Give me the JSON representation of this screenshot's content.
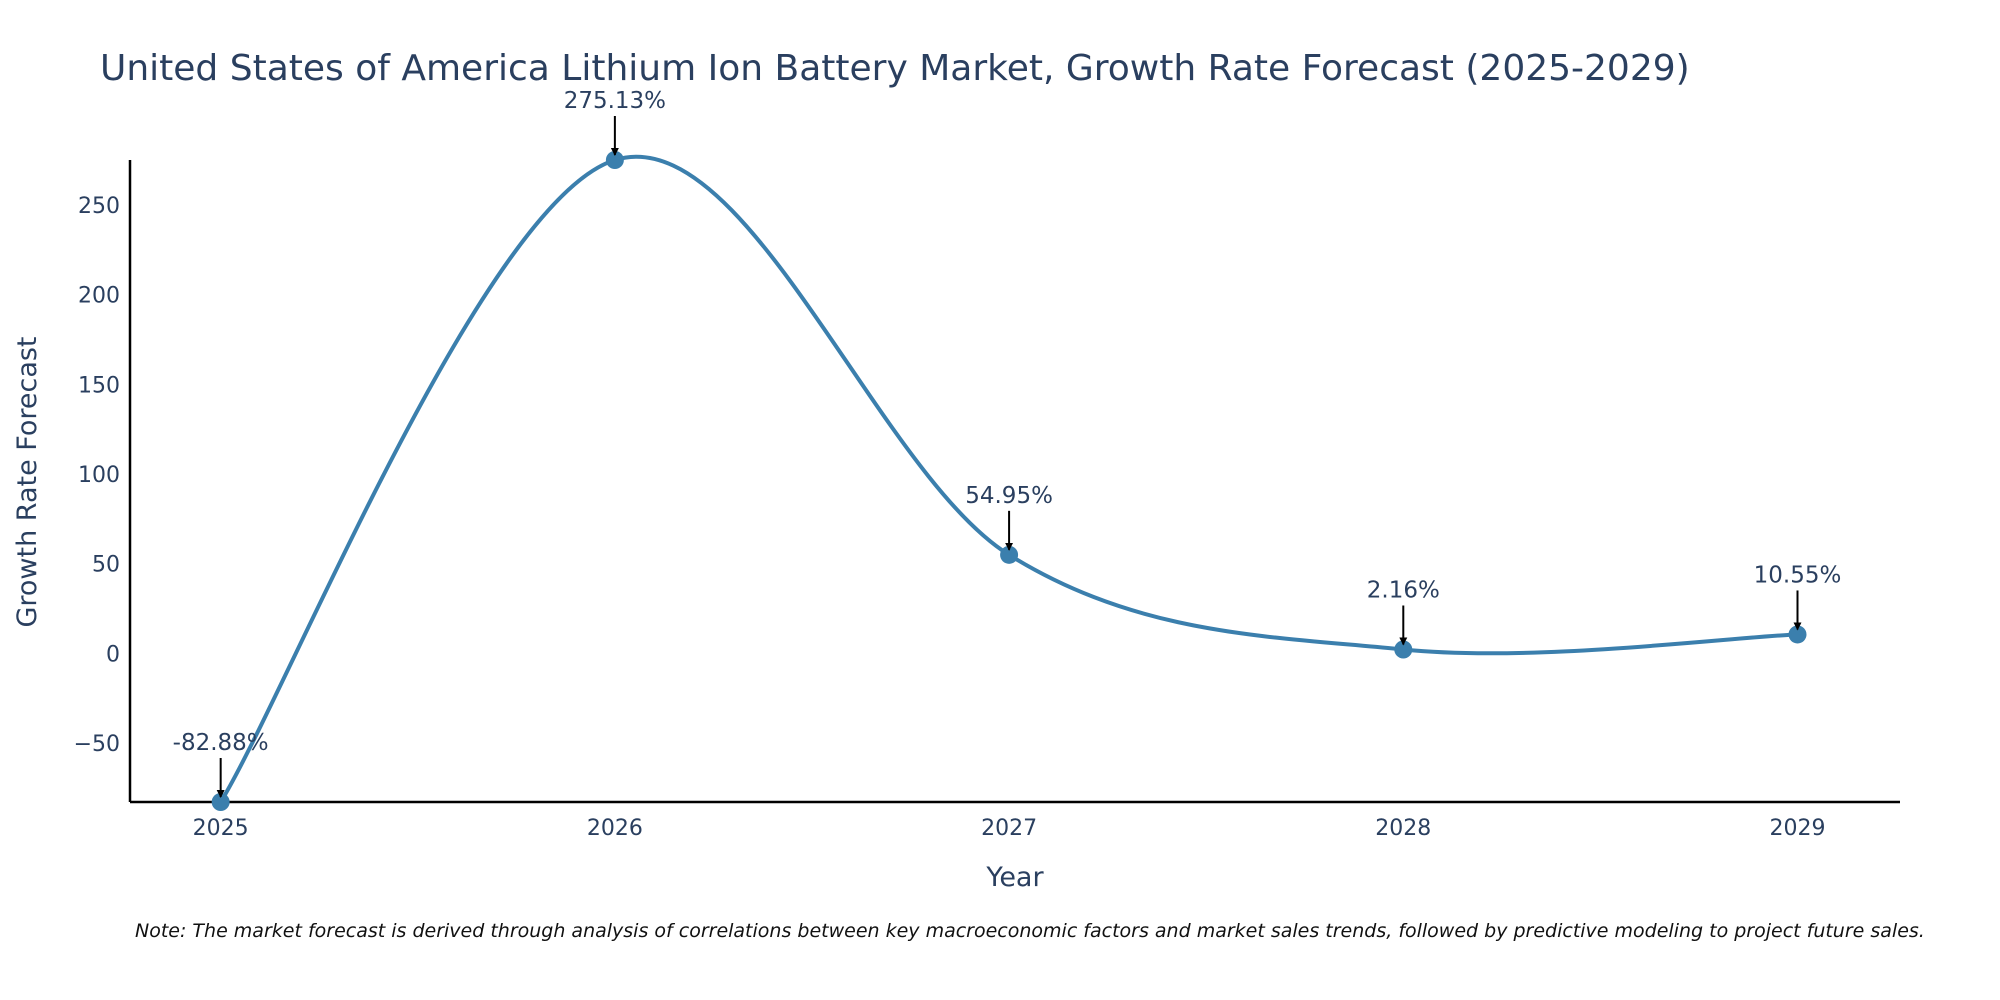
{
  "chart_data": {
    "type": "line",
    "title": "United States of America Lithium Ion Battery Market, Growth Rate Forecast (2025-2029)",
    "xlabel": "Year",
    "ylabel": "Growth Rate Forecast",
    "x": [
      2025,
      2026,
      2027,
      2028,
      2029
    ],
    "categories": [
      "2025",
      "2026",
      "2027",
      "2028",
      "2029"
    ],
    "values": [
      -82.88,
      275.13,
      54.95,
      2.16,
      10.55
    ],
    "labels": [
      "-82.88%",
      "275.13%",
      "54.95%",
      "2.16%",
      "10.55%"
    ],
    "ylim": [
      -82.88,
      275.13
    ],
    "xlim": [
      2024.77,
      2029.26
    ],
    "yticks": [
      -50,
      0,
      50,
      100,
      150,
      200,
      250
    ],
    "ytick_labels": [
      "−50",
      "0",
      "50",
      "100",
      "150",
      "200",
      "250"
    ],
    "line_color": "#3b7fad",
    "marker_color": "#3b7fad",
    "smoothing": "spline",
    "grid": false
  },
  "note": "Note: The market forecast is derived through analysis of correlations between key macroeconomic factors and market sales trends, followed by predictive modeling to project future sales."
}
